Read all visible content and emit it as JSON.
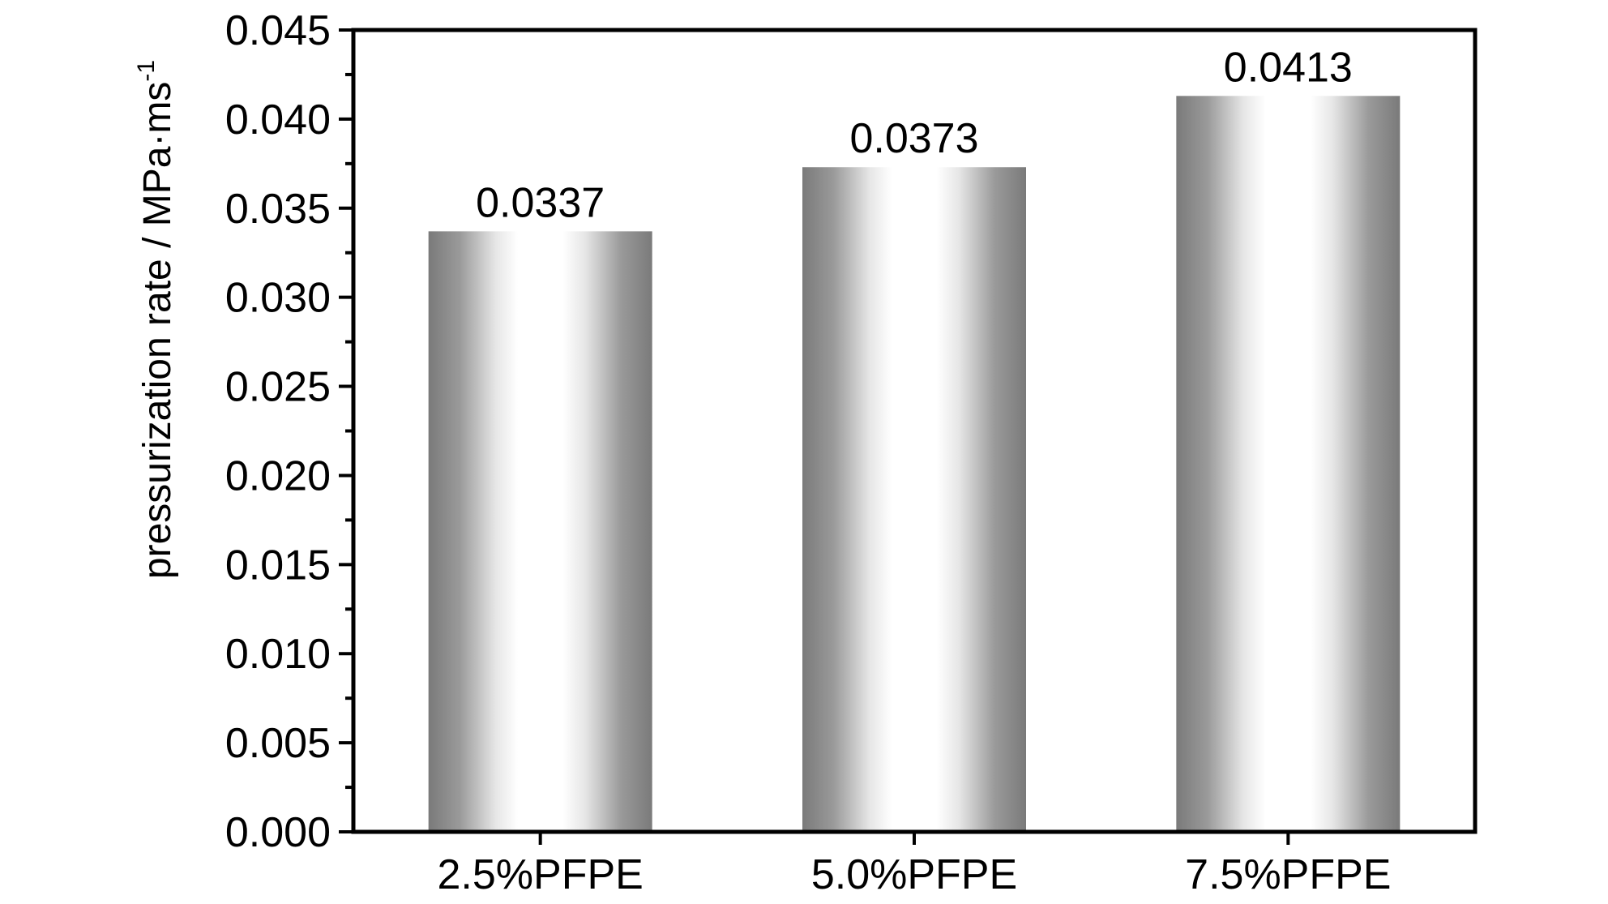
{
  "chart_data": {
    "type": "bar",
    "title": "",
    "categories": [
      "2.5%PFPE",
      "5.0%PFPE",
      "7.5%PFPE"
    ],
    "series": [
      {
        "values": [
          0.0337,
          0.0373,
          0.0413
        ],
        "data_labels": [
          "0.0337",
          "0.0373",
          "0.0413"
        ]
      }
    ],
    "xlabel": "",
    "ylabel": {
      "text": "pressurization rate / MPa·ms",
      "superscript": "-1"
    },
    "ylim": [
      0,
      0.045
    ],
    "yticks": [
      0.0,
      0.005,
      0.01,
      0.015,
      0.02,
      0.025,
      0.03,
      0.035,
      0.04,
      0.045
    ],
    "ytick_labels": [
      "0.000",
      "0.005",
      "0.010",
      "0.015",
      "0.020",
      "0.025",
      "0.030",
      "0.035",
      "0.040",
      "0.045"
    ],
    "grid": false,
    "legend": "none",
    "colors": {
      "bar_edge": "#7a7a7a",
      "bar_highlight": "#ffffff",
      "axis": "#000000",
      "text": "#000000"
    }
  }
}
